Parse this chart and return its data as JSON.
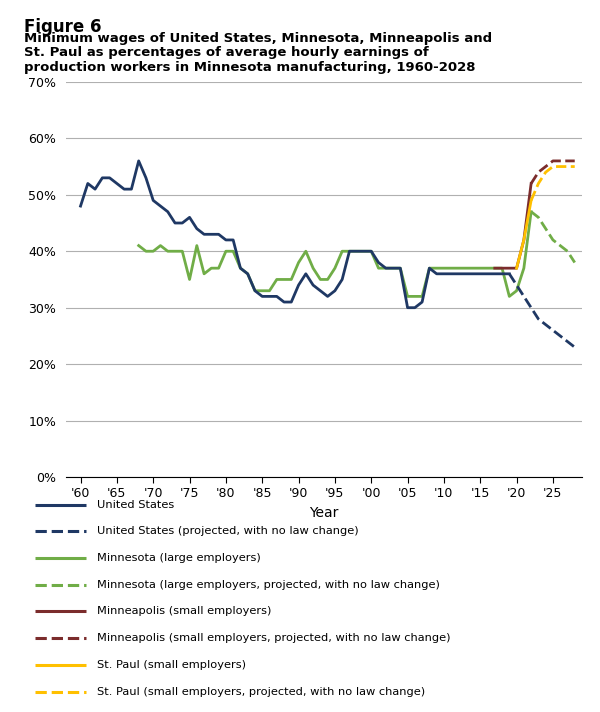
{
  "figure_label": "Figure 6",
  "title_line1": "Minimum wages of United States, Minnesota, Minneapolis and",
  "title_line2": "St. Paul as percentages of average hourly earnings of",
  "title_line3": "production workers in Minnesota manufacturing, 1960-2028",
  "xlabel": "Year",
  "us_solid": {
    "years": [
      1960,
      1961,
      1962,
      1963,
      1964,
      1965,
      1966,
      1967,
      1968,
      1969,
      1970,
      1971,
      1972,
      1973,
      1974,
      1975,
      1976,
      1977,
      1978,
      1979,
      1980,
      1981,
      1982,
      1983,
      1984,
      1985,
      1986,
      1987,
      1988,
      1989,
      1990,
      1991,
      1992,
      1993,
      1994,
      1995,
      1996,
      1997,
      1998,
      1999,
      2000,
      2001,
      2002,
      2003,
      2004,
      2005,
      2006,
      2007,
      2008,
      2009,
      2010,
      2011,
      2012,
      2013,
      2014,
      2015,
      2016,
      2017,
      2018,
      2019
    ],
    "values": [
      48,
      52,
      51,
      53,
      53,
      52,
      51,
      51,
      56,
      53,
      49,
      48,
      47,
      45,
      45,
      46,
      44,
      43,
      43,
      43,
      42,
      42,
      37,
      36,
      33,
      32,
      32,
      32,
      31,
      31,
      34,
      36,
      34,
      33,
      32,
      33,
      35,
      40,
      40,
      40,
      40,
      38,
      37,
      37,
      37,
      30,
      30,
      31,
      37,
      36,
      36,
      36,
      36,
      36,
      36,
      36,
      36,
      36,
      36,
      36
    ]
  },
  "us_dashed": {
    "years": [
      2019,
      2020,
      2021,
      2022,
      2023,
      2024,
      2025,
      2026,
      2027,
      2028
    ],
    "values": [
      36,
      34,
      32,
      30,
      28,
      27,
      26,
      25,
      24,
      23
    ]
  },
  "mn_solid": {
    "years": [
      1968,
      1969,
      1970,
      1971,
      1972,
      1973,
      1974,
      1975,
      1976,
      1977,
      1978,
      1979,
      1980,
      1981,
      1982,
      1983,
      1984,
      1985,
      1986,
      1987,
      1988,
      1989,
      1990,
      1991,
      1992,
      1993,
      1994,
      1995,
      1996,
      1997,
      1998,
      1999,
      2000,
      2001,
      2002,
      2003,
      2004,
      2005,
      2006,
      2007,
      2008,
      2009,
      2010,
      2011,
      2012,
      2013,
      2014,
      2015,
      2016,
      2017,
      2018,
      2019,
      2020,
      2021,
      2022
    ],
    "values": [
      41,
      40,
      40,
      41,
      40,
      40,
      40,
      35,
      41,
      36,
      37,
      37,
      40,
      40,
      37,
      36,
      33,
      33,
      33,
      35,
      35,
      35,
      38,
      40,
      37,
      35,
      35,
      37,
      40,
      40,
      40,
      40,
      40,
      37,
      37,
      37,
      37,
      32,
      32,
      32,
      37,
      37,
      37,
      37,
      37,
      37,
      37,
      37,
      37,
      37,
      37,
      32,
      33,
      37,
      47
    ]
  },
  "mn_dashed": {
    "years": [
      2022,
      2023,
      2024,
      2025,
      2026,
      2027,
      2028
    ],
    "values": [
      47,
      46,
      44,
      42,
      41,
      40,
      38
    ]
  },
  "mpls_solid": {
    "years": [
      2017,
      2018,
      2019,
      2020,
      2021,
      2022
    ],
    "values": [
      37,
      37,
      37,
      37,
      42,
      52
    ]
  },
  "mpls_dashed": {
    "years": [
      2022,
      2023,
      2024,
      2025,
      2026,
      2027,
      2028
    ],
    "values": [
      52,
      54,
      55,
      56,
      56,
      56,
      56
    ]
  },
  "stpaul_solid": {
    "years": [
      2020,
      2021,
      2022
    ],
    "values": [
      37,
      42,
      49
    ]
  },
  "stpaul_dashed": {
    "years": [
      2022,
      2023,
      2024,
      2025,
      2026,
      2027,
      2028
    ],
    "values": [
      49,
      52,
      54,
      55,
      55,
      55,
      55
    ]
  },
  "color_us": "#1f3864",
  "color_mn": "#70ad47",
  "color_mpls": "#7b2c2c",
  "color_stpaul": "#ffc000",
  "yticks": [
    0,
    10,
    20,
    30,
    40,
    50,
    60,
    70
  ],
  "xticks": [
    1960,
    1965,
    1970,
    1975,
    1980,
    1985,
    1990,
    1995,
    2000,
    2005,
    2010,
    2015,
    2020,
    2025
  ],
  "xtick_labels": [
    "'60",
    "'65",
    "'70",
    "'75",
    "'80",
    "'85",
    "'90",
    "'95",
    "'00",
    "'05",
    "'10",
    "'15",
    "'20",
    "'25"
  ],
  "ylim": [
    0,
    70
  ],
  "xlim": [
    1958,
    2029
  ],
  "legend_items": [
    {
      "label": "United States",
      "color": "#1f3864",
      "ls": "-"
    },
    {
      "label": "United States (projected, with no law change)",
      "color": "#1f3864",
      "ls": "--"
    },
    {
      "label": "Minnesota (large employers)",
      "color": "#70ad47",
      "ls": "-"
    },
    {
      "label": "Minnesota (large employers, projected, with no law change)",
      "color": "#70ad47",
      "ls": "--"
    },
    {
      "label": "Minneapolis (small employers)",
      "color": "#7b2c2c",
      "ls": "-"
    },
    {
      "label": "Minneapolis (small employers, projected, with no law change)",
      "color": "#7b2c2c",
      "ls": "--"
    },
    {
      "label": "St. Paul (small employers)",
      "color": "#ffc000",
      "ls": "-"
    },
    {
      "label": "St. Paul (small employers, projected, with no law change)",
      "color": "#ffc000",
      "ls": "--"
    }
  ]
}
